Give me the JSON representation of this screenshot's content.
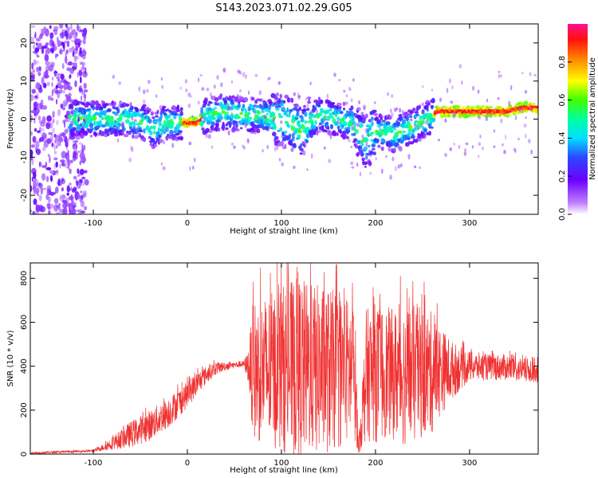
{
  "title": "S143.2023.071.02.29.G05",
  "chart_data": [
    {
      "type": "heatmap",
      "xlabel": "Height of straight line (km)",
      "ylabel": "Frequency (Hz)",
      "xlim": [
        -167,
        373
      ],
      "ylim": [
        -25,
        25
      ],
      "xticks": [
        "-100",
        "0",
        "100",
        "200",
        "300"
      ],
      "xtick_values": [
        -100,
        0,
        100,
        200,
        300
      ],
      "yticks": [
        "-20",
        "-10",
        "0",
        "10",
        "20"
      ],
      "ytick_values": [
        -20,
        -10,
        0,
        10,
        20
      ],
      "colorbar": {
        "label": "Normalized spectral amplitude",
        "ticks": [
          "0.0",
          "0.2",
          "0.4",
          "0.6",
          "0.8"
        ],
        "tick_values": [
          0.0,
          0.2,
          0.4,
          0.6,
          0.8
        ],
        "range": [
          0,
          1
        ],
        "colormap": [
          "#ffffff",
          "#7a00ff",
          "#3a3aff",
          "#00e5ff",
          "#00ff80",
          "#ffff00",
          "#ff8000",
          "#ff0000",
          "#ff1080"
        ]
      },
      "ridge": {
        "x": [
          -120,
          -80,
          -60,
          -45,
          -35,
          -25,
          -15,
          0,
          10,
          20,
          40,
          60,
          80,
          95,
          100,
          110,
          120,
          140,
          160,
          175,
          185,
          190,
          200,
          220,
          240,
          255,
          265,
          280,
          300,
          320,
          340,
          355,
          373
        ],
        "y": [
          0,
          0,
          0,
          -1,
          -3,
          -1,
          -1,
          -1,
          -1,
          1,
          2,
          1,
          1,
          0,
          0,
          -1,
          -3,
          1,
          0,
          -1,
          -5,
          -6,
          -3,
          -4,
          -2,
          0,
          2,
          2,
          2,
          2,
          2,
          3,
          3
        ]
      }
    },
    {
      "type": "line",
      "xlabel": "Height of straight line (km)",
      "ylabel": "SNR (10 * v/v)",
      "xlim": [
        -167,
        373
      ],
      "ylim": [
        0,
        870
      ],
      "xticks": [
        "-100",
        "0",
        "100",
        "200",
        "300"
      ],
      "xtick_values": [
        -100,
        0,
        100,
        200,
        300
      ],
      "yticks": [
        "0",
        "200",
        "400",
        "600",
        "800"
      ],
      "ytick_values": [
        0,
        200,
        400,
        600,
        800
      ],
      "series": [
        {
          "color": "#f03232",
          "envelope": {
            "x": [
              -167,
              -100,
              -90,
              -80,
              -70,
              -60,
              -50,
              -40,
              -30,
              -20,
              -10,
              0,
              10,
              20,
              30,
              40,
              50,
              60,
              65,
              70,
              80,
              90,
              100,
              110,
              120,
              130,
              140,
              150,
              160,
              170,
              178,
              182,
              190,
              200,
              210,
              220,
              230,
              240,
              250,
              260,
              270,
              280,
              290,
              300,
              320,
              340,
              360,
              373
            ],
            "center": [
              5,
              15,
              30,
              50,
              70,
              90,
              110,
              130,
              160,
              190,
              230,
              270,
              320,
              360,
              390,
              400,
              405,
              410,
              400,
              380,
              380,
              380,
              390,
              390,
              390,
              385,
              385,
              380,
              380,
              380,
              380,
              20,
              360,
              370,
              370,
              365,
              365,
              360,
              370,
              370,
              380,
              380,
              390,
              400,
              395,
              395,
              380,
              385
            ],
            "spread": [
              5,
              5,
              15,
              30,
              45,
              60,
              65,
              70,
              70,
              70,
              65,
              60,
              55,
              40,
              30,
              20,
              15,
              15,
              80,
              320,
              340,
              360,
              380,
              400,
              420,
              390,
              390,
              380,
              360,
              340,
              320,
              20,
              300,
              320,
              300,
              300,
              330,
              320,
              300,
              280,
              200,
              140,
              100,
              70,
              60,
              60,
              55,
              60
            ]
          }
        }
      ]
    }
  ]
}
